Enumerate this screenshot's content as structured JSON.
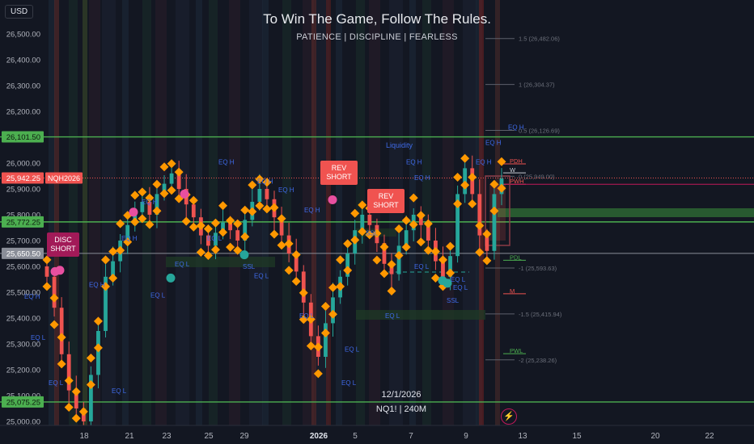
{
  "header": {
    "currency": "USD",
    "title": "To Win The Game, Follow The Rules.",
    "subtitle": "PATIENCE  |  DISCIPLINE  |  FEARLESS",
    "date_caption": "12/1/2026",
    "symbol_caption": "NQ1! | 240M"
  },
  "colors": {
    "background": "#131722",
    "bull": "#26a69a",
    "bear": "#ef5350",
    "level_green": "#4caf50",
    "marker_orange": "#ff9800",
    "label_blue": "#2962ff",
    "disc_callout": "#a21a58",
    "rev_callout": "#f05350"
  },
  "chart_data": {
    "type": "candlestick",
    "title": "To Win The Game, Follow The Rules.",
    "symbol": "NQH2026",
    "timeframe": "240M",
    "currency": "USD",
    "ylim": [
      24990,
      26580
    ],
    "y_ticks": [
      {
        "value": 25000,
        "label": "25,000.00"
      },
      {
        "value": 25100,
        "label": "25,100.00"
      },
      {
        "value": 25200,
        "label": "25,200.00"
      },
      {
        "value": 25300,
        "label": "25,300.00"
      },
      {
        "value": 25400,
        "label": "25,400.00"
      },
      {
        "value": 25500,
        "label": "25,500.00"
      },
      {
        "value": 25600,
        "label": "25,600.00"
      },
      {
        "value": 25700,
        "label": "25,700.00"
      },
      {
        "value": 25800,
        "label": "25,800.00"
      },
      {
        "value": 25900,
        "label": "25,900.00"
      },
      {
        "value": 26000,
        "label": "26,000.00"
      },
      {
        "value": 26100,
        "label": "26,100.00"
      },
      {
        "value": 26200,
        "label": "26,200.00"
      },
      {
        "value": 26300,
        "label": "26,300.00"
      },
      {
        "value": 26400,
        "label": "26,400.00"
      },
      {
        "value": 26500,
        "label": "26,500.00"
      }
    ],
    "x_ticks": [
      "18",
      "21",
      "23",
      "25",
      "29",
      "2026",
      "5",
      "7",
      "9",
      "13",
      "15",
      "20",
      "22"
    ],
    "price_tags": [
      {
        "value": 26101.5,
        "label": "26,101.50",
        "kind": "level"
      },
      {
        "value": 25942.25,
        "label": "25,942.25",
        "kind": "last",
        "symbol": "NQH2026"
      },
      {
        "value": 25772.25,
        "label": "25,772.25",
        "kind": "level"
      },
      {
        "value": 25650.5,
        "label": "25,650.50",
        "kind": "gray"
      },
      {
        "value": 25075.25,
        "label": "25,075.25",
        "kind": "level"
      }
    ],
    "fib_levels": [
      {
        "label": "1.5 (26,482.06)",
        "value": 26482.06
      },
      {
        "label": "1 (26,304.37)",
        "value": 26304.37
      },
      {
        "label": "0.5 (26,126.69)",
        "value": 26126.69
      },
      {
        "label": "0 (25,949.00)",
        "value": 25949.0
      },
      {
        "label": "-1 (25,593.63)",
        "value": 25593.63
      },
      {
        "label": "-1.5 (25,415.94)",
        "value": 25415.94
      },
      {
        "label": "-2 (25,238.26)",
        "value": 25238.26
      }
    ],
    "right_tags": [
      {
        "label": "PDH",
        "value": 25997
      },
      {
        "label": "W",
        "value": 25962
      },
      {
        "label": "PWH",
        "value": 25918
      },
      {
        "label": "PDL",
        "value": 25624
      },
      {
        "label": "M",
        "value": 25494
      },
      {
        "label": "PWL",
        "value": 25262
      }
    ],
    "callouts": [
      {
        "text": "DISC\nSHORT",
        "value": 25685
      },
      {
        "text": "REV\nSHORT",
        "value": 25935
      },
      {
        "text": "REV\nSHORT",
        "value": 25820
      }
    ],
    "annotations": [
      "Liquidity",
      "EQ H",
      "EQ L",
      "SSL",
      "BSL"
    ],
    "close_series": [
      25560,
      25440,
      25260,
      25120,
      25050,
      25000,
      25180,
      25350,
      25560,
      25620,
      25700,
      25760,
      25810,
      25850,
      25800,
      25880,
      25920,
      25960,
      25900,
      25840,
      25790,
      25720,
      25680,
      25730,
      25770,
      25740,
      25700,
      25780,
      25850,
      25900,
      25860,
      25790,
      25720,
      25650,
      25580,
      25460,
      25330,
      25250,
      25380,
      25480,
      25560,
      25650,
      25740,
      25800,
      25760,
      25690,
      25610,
      25570,
      25680,
      25740,
      25800,
      25760,
      25700,
      25620,
      25560,
      25640,
      25880,
      25980,
      25880,
      25720,
      25660,
      25880,
      25940
    ],
    "grid": false
  }
}
